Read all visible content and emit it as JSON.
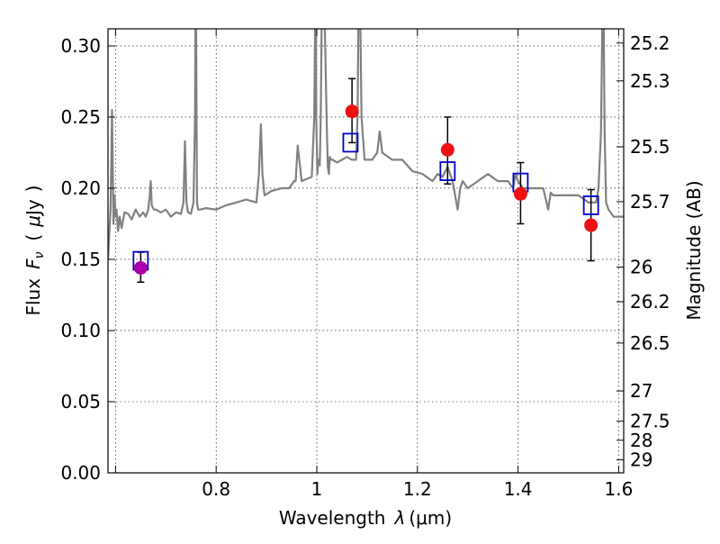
{
  "chart_data": {
    "type": "scatter",
    "xlabel": "Wavelength  λ (μm)",
    "ylabel": "Flux  Fν  ( μJy )",
    "ylabel_parts": {
      "prefix": "Flux",
      "symbol": "F",
      "subscript": "ν",
      "unit_open": "(",
      "unit_mu": "μ",
      "unit": "Jy",
      "unit_close": ")"
    },
    "xlabel_parts": {
      "prefix": "Wavelength",
      "symbol": "λ",
      "unit": "(μm)"
    },
    "y2label": "Magnitude (AB)",
    "xlim": [
      0.585,
      1.61
    ],
    "ylim": [
      0.0,
      0.312
    ],
    "grid": true,
    "x_ticks": [
      {
        "value": 0.6,
        "label": ""
      },
      {
        "value": 0.8,
        "label": "0.8"
      },
      {
        "value": 1.0,
        "label": "1"
      },
      {
        "value": 1.2,
        "label": "1.2"
      },
      {
        "value": 1.4,
        "label": "1.4"
      },
      {
        "value": 1.6,
        "label": "1.6"
      }
    ],
    "y_ticks": [
      {
        "value": 0.0,
        "label": "0.00"
      },
      {
        "value": 0.05,
        "label": "0.05"
      },
      {
        "value": 0.1,
        "label": "0.10"
      },
      {
        "value": 0.15,
        "label": "0.15"
      },
      {
        "value": 0.2,
        "label": "0.20"
      },
      {
        "value": 0.25,
        "label": "0.25"
      },
      {
        "value": 0.3,
        "label": "0.30"
      }
    ],
    "mag_ticks": [
      {
        "value": 25.2,
        "label": "25.2"
      },
      {
        "value": 25.3,
        "label": "25.3"
      },
      {
        "value": 25.5,
        "label": "25.5"
      },
      {
        "value": 25.7,
        "label": "25.7"
      },
      {
        "value": 26.0,
        "label": "26"
      },
      {
        "value": 26.2,
        "label": "26.2"
      },
      {
        "value": 26.5,
        "label": "26.5"
      },
      {
        "value": 27.0,
        "label": "27"
      },
      {
        "value": 27.5,
        "label": "27.5"
      },
      {
        "value": 28.0,
        "label": "28"
      },
      {
        "value": 29.0,
        "label": "29"
      }
    ],
    "series": [
      {
        "name": "model-spectrum",
        "kind": "line",
        "color": "#808080",
        "x": [
          0.585,
          0.59,
          0.593,
          0.596,
          0.598,
          0.6,
          0.602,
          0.605,
          0.608,
          0.612,
          0.618,
          0.625,
          0.632,
          0.64,
          0.648,
          0.655,
          0.66,
          0.665,
          0.668,
          0.67,
          0.672,
          0.676,
          0.68,
          0.69,
          0.7,
          0.71,
          0.72,
          0.73,
          0.735,
          0.738,
          0.741,
          0.744,
          0.75,
          0.755,
          0.758,
          0.759,
          0.76,
          0.761,
          0.762,
          0.764,
          0.768,
          0.78,
          0.8,
          0.82,
          0.84,
          0.86,
          0.88,
          0.885,
          0.889,
          0.892,
          0.896,
          0.91,
          0.93,
          0.945,
          0.955,
          0.958,
          0.962,
          0.97,
          0.99,
          0.995,
          0.997,
          0.998,
          0.999,
          1.001,
          1.002,
          1.003,
          1.006,
          1.008,
          1.01,
          1.015,
          1.02,
          1.022,
          1.024,
          1.026,
          1.028,
          1.032,
          1.04,
          1.05,
          1.06,
          1.07,
          1.078,
          1.081,
          1.083,
          1.086,
          1.089,
          1.095,
          1.11,
          1.12,
          1.125,
          1.13,
          1.15,
          1.17,
          1.19,
          1.21,
          1.23,
          1.24,
          1.25,
          1.26,
          1.27,
          1.28,
          1.285,
          1.29,
          1.3,
          1.32,
          1.34,
          1.36,
          1.38,
          1.39,
          1.395,
          1.4,
          1.41,
          1.43,
          1.45,
          1.46,
          1.465,
          1.47,
          1.48,
          1.5,
          1.52,
          1.54,
          1.55,
          1.555,
          1.56,
          1.565,
          1.568,
          1.57,
          1.572,
          1.575,
          1.58,
          1.59,
          1.6,
          1.61
        ],
        "y": [
          0.15,
          0.185,
          0.255,
          0.175,
          0.195,
          0.18,
          0.185,
          0.17,
          0.18,
          0.172,
          0.183,
          0.182,
          0.178,
          0.185,
          0.18,
          0.183,
          0.18,
          0.185,
          0.195,
          0.205,
          0.188,
          0.185,
          0.185,
          0.183,
          0.185,
          0.18,
          0.183,
          0.182,
          0.19,
          0.233,
          0.19,
          0.183,
          0.182,
          0.19,
          0.25,
          0.33,
          0.33,
          0.25,
          0.19,
          0.185,
          0.185,
          0.186,
          0.185,
          0.188,
          0.19,
          0.192,
          0.19,
          0.21,
          0.245,
          0.21,
          0.195,
          0.198,
          0.2,
          0.2,
          0.205,
          0.205,
          0.23,
          0.205,
          0.208,
          0.25,
          0.33,
          0.33,
          0.25,
          0.21,
          0.215,
          0.22,
          0.216,
          0.255,
          0.33,
          0.33,
          0.24,
          0.215,
          0.21,
          0.222,
          0.22,
          0.22,
          0.218,
          0.22,
          0.222,
          0.22,
          0.22,
          0.25,
          0.33,
          0.33,
          0.25,
          0.22,
          0.22,
          0.225,
          0.24,
          0.225,
          0.22,
          0.22,
          0.212,
          0.21,
          0.205,
          0.21,
          0.208,
          0.215,
          0.205,
          0.185,
          0.2,
          0.205,
          0.2,
          0.205,
          0.21,
          0.205,
          0.205,
          0.2,
          0.21,
          0.205,
          0.2,
          0.2,
          0.2,
          0.185,
          0.197,
          0.195,
          0.195,
          0.195,
          0.195,
          0.19,
          0.19,
          0.19,
          0.2,
          0.24,
          0.33,
          0.33,
          0.24,
          0.19,
          0.185,
          0.18,
          0.18,
          0.18
        ]
      },
      {
        "name": "model-band-flux",
        "kind": "marker",
        "marker": "open-square",
        "color": "#0000cc",
        "points": [
          {
            "x": 0.65,
            "y": 0.149
          },
          {
            "x": 1.067,
            "y": 0.232
          },
          {
            "x": 1.26,
            "y": 0.212
          },
          {
            "x": 1.405,
            "y": 0.204
          },
          {
            "x": 1.545,
            "y": 0.188
          }
        ]
      },
      {
        "name": "observed-flux",
        "kind": "marker",
        "marker": "filled-circle",
        "points": [
          {
            "x": 0.65,
            "y": 0.144,
            "yerr_low": 0.134,
            "yerr_high": 0.155,
            "color": "#aa00aa"
          },
          {
            "x": 1.07,
            "y": 0.254,
            "yerr_low": 0.232,
            "yerr_high": 0.277,
            "color": "#ee1111"
          },
          {
            "x": 1.26,
            "y": 0.227,
            "yerr_low": 0.203,
            "yerr_high": 0.25,
            "color": "#ee1111"
          },
          {
            "x": 1.405,
            "y": 0.196,
            "yerr_low": 0.175,
            "yerr_high": 0.218,
            "color": "#ee1111"
          },
          {
            "x": 1.545,
            "y": 0.174,
            "yerr_low": 0.149,
            "yerr_high": 0.199,
            "color": "#ee1111"
          }
        ]
      }
    ]
  }
}
